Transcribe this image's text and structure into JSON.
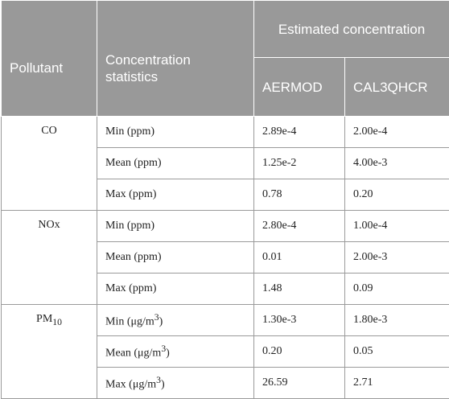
{
  "header": {
    "group_label": "Estimated concentration",
    "pollutant_label": "Pollutant",
    "stats_label": "Concentration statistics",
    "model_1": "AERMOD",
    "model_2": "CAL3QHCR"
  },
  "groups": [
    {
      "pollutant": "CO",
      "rows": [
        {
          "stat": "Min (ppm)",
          "aermod": "2.89e-4",
          "cal3qhcr": "2.00e-4"
        },
        {
          "stat": "Mean (ppm)",
          "aermod": "1.25e-2",
          "cal3qhcr": "4.00e-3"
        },
        {
          "stat": "Max (ppm)",
          "aermod": "0.78",
          "cal3qhcr": "0.20"
        }
      ]
    },
    {
      "pollutant": "NOx",
      "rows": [
        {
          "stat": "Min (ppm)",
          "aermod": "2.80e-4",
          "cal3qhcr": "1.00e-4"
        },
        {
          "stat": "Mean (ppm)",
          "aermod": "0.01",
          "cal3qhcr": "2.00e-3"
        },
        {
          "stat": "Max (ppm)",
          "aermod": "1.48",
          "cal3qhcr": "0.09"
        }
      ]
    },
    {
      "pollutant_base": "PM",
      "pollutant_sub": "10",
      "rows": [
        {
          "stat_base": "Min (μg/m",
          "stat_sup": "3",
          "stat_end": ")",
          "aermod": "1.30e-3",
          "cal3qhcr": "1.80e-3"
        },
        {
          "stat_base": "Mean (μg/m",
          "stat_sup": "3",
          "stat_end": ")",
          "aermod": "0.20",
          "cal3qhcr": "0.05"
        },
        {
          "stat_base": "Max (μg/m",
          "stat_sup": "3",
          "stat_end": ")",
          "aermod": "26.59",
          "cal3qhcr": "2.71"
        }
      ]
    }
  ]
}
